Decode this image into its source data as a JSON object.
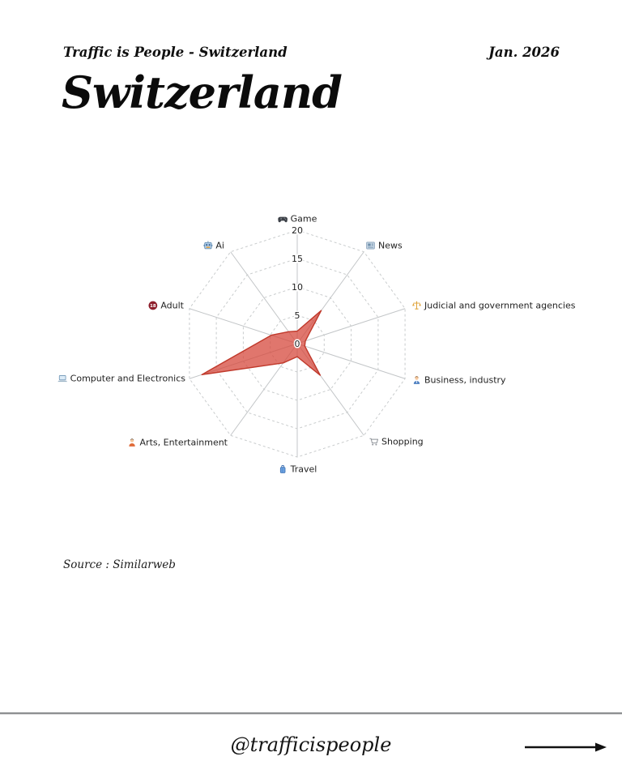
{
  "header": {
    "tagline": "Traffic is People - Switzerland",
    "date": "Jan. 2026",
    "title": "Switzerland"
  },
  "source_note": "Source : Similarweb",
  "footer": {
    "handle": "@trafficispeople",
    "arrow_icon": "right-arrow-icon"
  },
  "chart_data": {
    "type": "radar",
    "title": "Switzerland web traffic by category",
    "r_axis": {
      "ticks": [
        0,
        5,
        10,
        15,
        20
      ],
      "max": 20
    },
    "grid": "dashed-rings-solid-spokes",
    "fill_color": "rgba(214,72,60,0.75)",
    "stroke_color": "#c0392b",
    "grid_color": "#c9cccd",
    "spoke_color": "#c3c6c8",
    "categories": [
      {
        "label": "Game",
        "icon": "game-controller-icon",
        "value": 2.2
      },
      {
        "label": "News",
        "icon": "newspaper-icon",
        "value": 7.2
      },
      {
        "label": "Judicial and government agencies",
        "icon": "scales-icon",
        "value": 1.5
      },
      {
        "label": "Business, industry",
        "icon": "business-person-icon",
        "value": 1.4
      },
      {
        "label": "Shopping",
        "icon": "shopping-cart-icon",
        "value": 6.9
      },
      {
        "label": "Travel",
        "icon": "luggage-icon",
        "value": 2.3
      },
      {
        "label": "Arts, Entertainment",
        "icon": "artist-icon",
        "value": 4.2
      },
      {
        "label": "Computer and Electronics",
        "icon": "laptop-icon",
        "value": 17.7
      },
      {
        "label": "Adult",
        "icon": "adult-18-icon",
        "value": 4.8
      },
      {
        "label": "Ai",
        "icon": "robot-icon",
        "value": 2.6
      }
    ]
  }
}
